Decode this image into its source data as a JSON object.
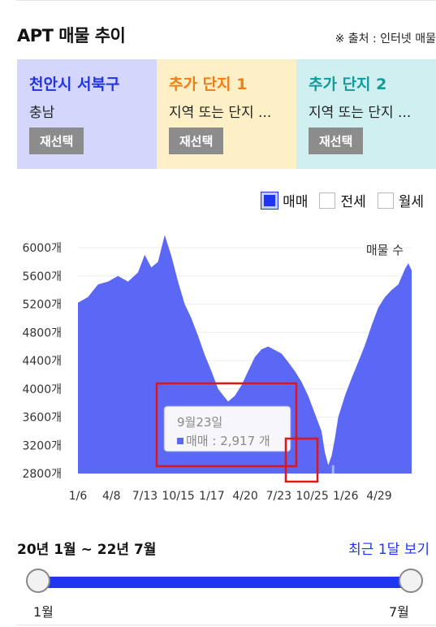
{
  "header": {
    "title": "APT 매물 추이",
    "source": "※ 출처 : 인터넷 매물"
  },
  "cards": [
    {
      "title": "천안시 서북구",
      "sub": "충남",
      "button": "재선택",
      "bg": "#d4d7fb",
      "color": "#2233e6"
    },
    {
      "title": "추가 단지 1",
      "sub": "지역 또는 단지 ...",
      "button": "재선택",
      "bg": "#fdf0c6",
      "color": "#f07d16"
    },
    {
      "title": "추가 단지 2",
      "sub": "지역 또는 단지 ...",
      "button": "재선택",
      "bg": "#cfeff0",
      "color": "#139a9a"
    }
  ],
  "legend": [
    {
      "label": "매매",
      "checked": true
    },
    {
      "label": "전세",
      "checked": false
    },
    {
      "label": "월세",
      "checked": false
    }
  ],
  "chart_data": {
    "type": "area",
    "ylabel": "매물 수",
    "y_ticks": [
      "6000개",
      "5600개",
      "5200개",
      "4800개",
      "4400개",
      "4000개",
      "3600개",
      "3200개",
      "2800개"
    ],
    "x_ticks": [
      "1/6",
      "4/8",
      "7/13",
      "10/15",
      "1/17",
      "4/20",
      "7/23",
      "10/25",
      "1/26",
      "4/29"
    ],
    "ylim": [
      2800,
      6000
    ],
    "color": "#5b67f5",
    "points": [
      [
        0,
        5220
      ],
      [
        3,
        5300
      ],
      [
        6,
        5480
      ],
      [
        9,
        5520
      ],
      [
        12,
        5600
      ],
      [
        15,
        5520
      ],
      [
        18,
        5650
      ],
      [
        20,
        5900
      ],
      [
        22,
        5720
      ],
      [
        24,
        5800
      ],
      [
        26,
        6180
      ],
      [
        28,
        5880
      ],
      [
        30,
        5520
      ],
      [
        32,
        5200
      ],
      [
        34,
        5000
      ],
      [
        36,
        4750
      ],
      [
        38,
        4480
      ],
      [
        40,
        4250
      ],
      [
        42,
        4000
      ],
      [
        44,
        3880
      ],
      [
        45,
        3820
      ],
      [
        47,
        3900
      ],
      [
        49,
        4050
      ],
      [
        51,
        4250
      ],
      [
        53,
        4450
      ],
      [
        55,
        4560
      ],
      [
        57,
        4600
      ],
      [
        59,
        4550
      ],
      [
        61,
        4500
      ],
      [
        63,
        4380
      ],
      [
        65,
        4250
      ],
      [
        67,
        4100
      ],
      [
        69,
        3900
      ],
      [
        71,
        3650
      ],
      [
        73,
        3400
      ],
      [
        74,
        3100
      ],
      [
        75,
        2917
      ],
      [
        76,
        3050
      ],
      [
        77,
        3300
      ],
      [
        78,
        3600
      ],
      [
        80,
        3900
      ],
      [
        82,
        4150
      ],
      [
        84,
        4380
      ],
      [
        86,
        4620
      ],
      [
        88,
        4900
      ],
      [
        90,
        5150
      ],
      [
        92,
        5300
      ],
      [
        94,
        5400
      ],
      [
        96,
        5480
      ],
      [
        98,
        5700
      ],
      [
        99,
        5780
      ],
      [
        100,
        5680
      ]
    ]
  },
  "tooltip": {
    "date": "9월23일",
    "series": "매매",
    "value": "2,917",
    "unit": "개"
  },
  "range": {
    "text": "20년 1월 ~ 22년 7월",
    "recent": "최근 1달 보기",
    "start_label": "1월",
    "end_label": "7월"
  }
}
